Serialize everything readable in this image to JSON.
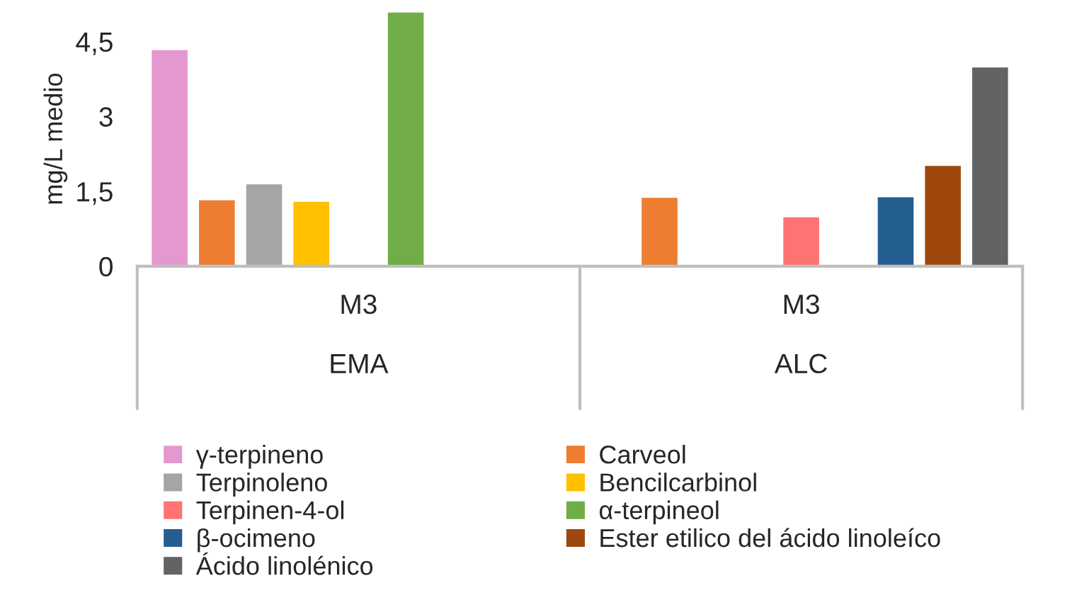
{
  "chart_data": {
    "type": "bar",
    "ylabel": "mg/L medio",
    "categories": [
      "M3\n\nEMA",
      "M3\n\nALC"
    ],
    "series": [
      {
        "name": "γ-terpineno",
        "color": "#e398cf",
        "values": [
          4.35,
          null
        ]
      },
      {
        "name": "Carveol",
        "color": "#ed7d31",
        "values": [
          1.34,
          1.39
        ]
      },
      {
        "name": "Terpinoleno",
        "color": "#a5a5a5",
        "values": [
          1.66,
          null
        ]
      },
      {
        "name": "Bencilcarbinol",
        "color": "#ffc000",
        "values": [
          1.31,
          null
        ]
      },
      {
        "name": "Terpinen-4-ol",
        "color": "#ff7373",
        "values": [
          null,
          1.0
        ]
      },
      {
        "name": "α-terpineol",
        "color": "#70ad47",
        "values": [
          5.1,
          null
        ]
      },
      {
        "name": "β-ocimeno",
        "color": "#255e91",
        "values": [
          null,
          1.4
        ]
      },
      {
        "name": "Ester etilico del ácido linoleíco",
        "color": "#9e480e",
        "values": [
          null,
          2.03
        ]
      },
      {
        "name": "Ácido linolénico",
        "color": "#636363",
        "values": [
          null,
          4.0
        ]
      }
    ],
    "ylim": [
      0,
      5.1
    ],
    "yticks": [
      0,
      {
        "value": 1.5,
        "label": "1,5"
      },
      3,
      {
        "value": 4.5,
        "label": "4,5"
      }
    ],
    "grid": false,
    "legend": "bottom"
  }
}
